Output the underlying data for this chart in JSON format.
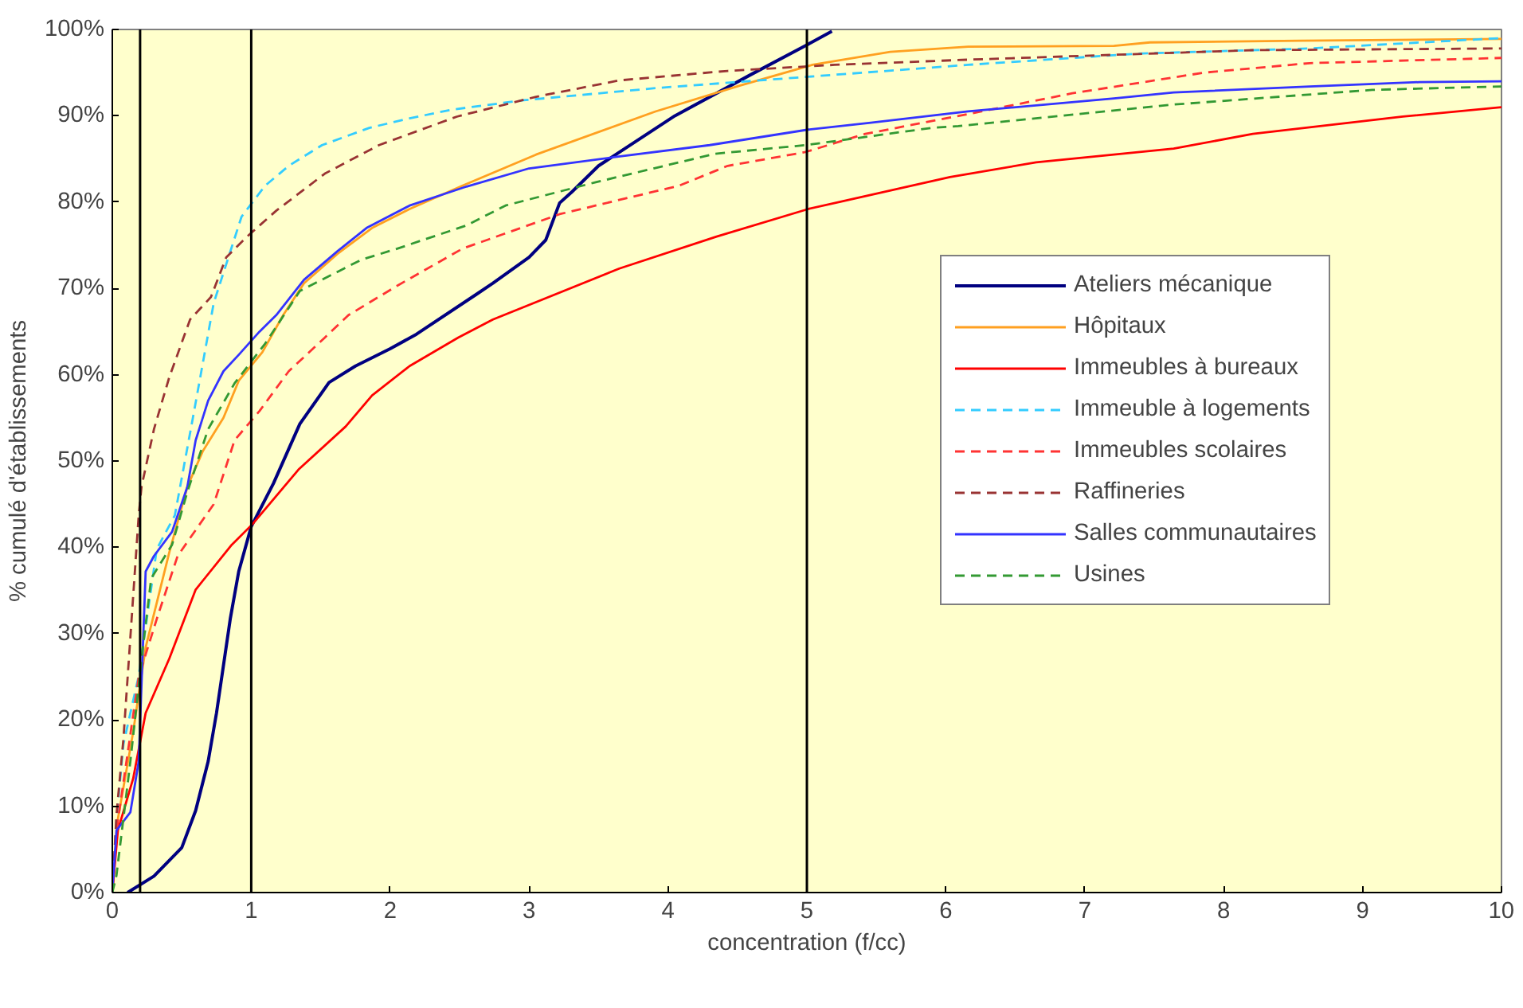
{
  "chart_data": {
    "type": "line",
    "xlabel": "concentration (f/cc)",
    "ylabel": "% cumulé d'établissements",
    "xlim": [
      0,
      10
    ],
    "ylim": [
      0,
      100
    ],
    "xticks": [
      0,
      1,
      2,
      3,
      4,
      5,
      6,
      7,
      8,
      9,
      10
    ],
    "yticks": [
      {
        "value": 0,
        "label": "0%"
      },
      {
        "value": 10,
        "label": "10%"
      },
      {
        "value": 20,
        "label": "20%"
      },
      {
        "value": 30,
        "label": "30%"
      },
      {
        "value": 40,
        "label": "40%"
      },
      {
        "value": 50,
        "label": "50%"
      },
      {
        "value": 60,
        "label": "60%"
      },
      {
        "value": 70,
        "label": "70%"
      },
      {
        "value": 80,
        "label": "80%"
      },
      {
        "value": 90,
        "label": "90%"
      },
      {
        "value": 100,
        "label": "100%"
      }
    ],
    "grid": false,
    "legend": "right",
    "marker": "none",
    "ref_lines": [
      {
        "axis": "x",
        "value": 0.2,
        "color": "#000000"
      },
      {
        "axis": "x",
        "value": 1,
        "color": "#000000"
      },
      {
        "axis": "x",
        "value": 5,
        "color": "#000000"
      }
    ],
    "series": [
      {
        "name": "Ateliers mécanique",
        "color": "#000080",
        "line_style": "solid",
        "x": [
          0.11,
          0.3,
          0.5,
          0.6,
          0.69,
          0.75,
          0.85,
          0.91,
          1.0,
          1.16,
          1.35,
          1.56,
          1.75,
          2.0,
          2.19,
          2.62,
          2.74,
          3.0,
          3.12,
          3.22,
          3.31,
          3.5,
          4.05,
          4.6,
          5.01,
          5.18
        ],
        "values": [
          0,
          1.9,
          5.2,
          9.5,
          15.2,
          20.8,
          31.8,
          37.2,
          42.4,
          47.4,
          54.3,
          59.1,
          61,
          63,
          64.7,
          69.3,
          70.6,
          73.6,
          75.6,
          79.9,
          81.2,
          84.2,
          90,
          94.8,
          98.3,
          99.8
        ]
      },
      {
        "name": "Hôpitaux",
        "color": "#ffa020",
        "line_style": "solid",
        "x": [
          0,
          0.04,
          0.15,
          0.24,
          0.41,
          0.54,
          0.65,
          0.8,
          0.91,
          1.08,
          1.23,
          1.38,
          1.62,
          1.87,
          2.14,
          2.52,
          3.05,
          3.91,
          4.52,
          5.04,
          5.6,
          6.16,
          7.21,
          7.47,
          8.55,
          10
        ],
        "values": [
          0,
          8.5,
          18.6,
          28.4,
          39.4,
          47,
          51.1,
          55,
          59.3,
          62.6,
          66.9,
          70.6,
          74,
          77,
          79.2,
          81.9,
          85.5,
          90.5,
          93.5,
          95.9,
          97.4,
          98,
          98.1,
          98.5,
          98.7,
          98.9
        ]
      },
      {
        "name": "Immeubles à bureaux",
        "color": "#ff0000",
        "line_style": "solid",
        "x": [
          0,
          0.04,
          0.15,
          0.24,
          0.41,
          0.6,
          0.86,
          1.01,
          1.34,
          1.68,
          1.87,
          2.14,
          2.49,
          2.74,
          3.65,
          4.35,
          5.01,
          6.03,
          6.65,
          7.64,
          8.21,
          9.29,
          10
        ],
        "values": [
          0,
          7.2,
          13.2,
          20.8,
          27.1,
          35.1,
          40.3,
          42.7,
          49,
          54,
          57.6,
          61,
          64.3,
          66.4,
          72.3,
          76,
          79.2,
          82.9,
          84.6,
          86.2,
          87.9,
          89.9,
          91
        ]
      },
      {
        "name": "Immeuble à logements",
        "color": "#33ccff",
        "line_style": "dashed",
        "x": [
          0,
          0.03,
          0.08,
          0.19,
          0.32,
          0.45,
          0.58,
          0.73,
          0.93,
          1.1,
          1.27,
          1.51,
          1.85,
          2.14,
          2.44,
          2.96,
          3.91,
          4.99,
          6.16,
          7.38,
          8.62,
          10
        ],
        "values": [
          0,
          8.5,
          17.2,
          25.1,
          39.8,
          43.7,
          55,
          68.3,
          78.3,
          81.9,
          84.2,
          86.6,
          88.6,
          89.7,
          90.7,
          91.8,
          93.2,
          94.5,
          95.9,
          97.2,
          97.8,
          99
        ]
      },
      {
        "name": "Immeubles scolaires",
        "color": "#ff3333",
        "line_style": "dashed",
        "x": [
          0,
          0.03,
          0.19,
          0.32,
          0.47,
          0.73,
          0.88,
          1.06,
          1.27,
          1.53,
          1.7,
          2.05,
          2.52,
          3.22,
          4.08,
          4.43,
          4.99,
          5.42,
          6.16,
          6.91,
          7.86,
          8.62,
          10
        ],
        "values": [
          0,
          7.2,
          25,
          31.7,
          39,
          45,
          52.4,
          55.8,
          60.4,
          64.3,
          66.9,
          70.3,
          74.6,
          78.6,
          81.9,
          84.2,
          85.8,
          87.9,
          90.2,
          92.6,
          95,
          96.1,
          96.7
        ]
      },
      {
        "name": "Raffineries",
        "color": "#993333",
        "line_style": "dashed",
        "x": [
          0,
          0.03,
          0.08,
          0.19,
          0.21,
          0.3,
          0.41,
          0.56,
          0.71,
          0.82,
          0.97,
          1.18,
          1.53,
          1.92,
          2.48,
          3.05,
          3.65,
          4.43,
          5.2,
          6.16,
          8.21,
          10
        ],
        "values": [
          0,
          9,
          17.8,
          43.7,
          47,
          53.7,
          59.7,
          66.4,
          69,
          73.6,
          76,
          79,
          83.3,
          86.6,
          89.9,
          92.2,
          94.1,
          95.2,
          95.9,
          96.5,
          97.6,
          97.8
        ]
      },
      {
        "name": "Salles communautaires",
        "color": "#3333ff",
        "line_style": "solid",
        "x": [
          0,
          0.03,
          0.13,
          0.19,
          0.24,
          0.3,
          0.43,
          0.54,
          0.6,
          0.69,
          0.8,
          0.91,
          1.06,
          1.18,
          1.38,
          1.62,
          1.83,
          2.14,
          2.55,
          3.0,
          3.61,
          4.3,
          5.01,
          5.46,
          6.16,
          7.21,
          7.64,
          8.62,
          9.41,
          10
        ],
        "values": [
          0,
          7.2,
          9.3,
          15.2,
          37.2,
          39,
          41.8,
          47,
          52.4,
          57,
          60.4,
          62.3,
          65,
          66.9,
          71,
          74.3,
          77,
          79.6,
          81.8,
          83.9,
          85.2,
          86.6,
          88.4,
          89.2,
          90.5,
          92,
          92.7,
          93.4,
          93.9,
          94
        ]
      },
      {
        "name": "Usines",
        "color": "#339933",
        "line_style": "dashed",
        "x": [
          0,
          0.03,
          0.13,
          0.22,
          0.28,
          0.43,
          0.54,
          0.69,
          0.88,
          1.1,
          1.35,
          1.79,
          2.05,
          2.55,
          2.83,
          3.48,
          4.34,
          4.99,
          5.9,
          6.09,
          7.64,
          9.07,
          10
        ],
        "values": [
          0,
          2,
          15.2,
          28.4,
          36.4,
          40.3,
          46.4,
          53.7,
          59,
          63.6,
          69.7,
          73.3,
          74.6,
          77.3,
          79.6,
          82.3,
          85.6,
          86.6,
          88.6,
          88.8,
          91.3,
          93,
          93.4
        ]
      }
    ]
  }
}
